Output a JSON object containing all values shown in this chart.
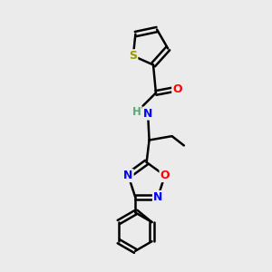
{
  "background_color": "#ebebeb",
  "bond_color": "#000000",
  "atom_colors": {
    "S": "#999900",
    "O": "#ff0000",
    "N": "#0000ff",
    "C": "#000000"
  },
  "figsize": [
    3.0,
    3.0
  ],
  "dpi": 100
}
